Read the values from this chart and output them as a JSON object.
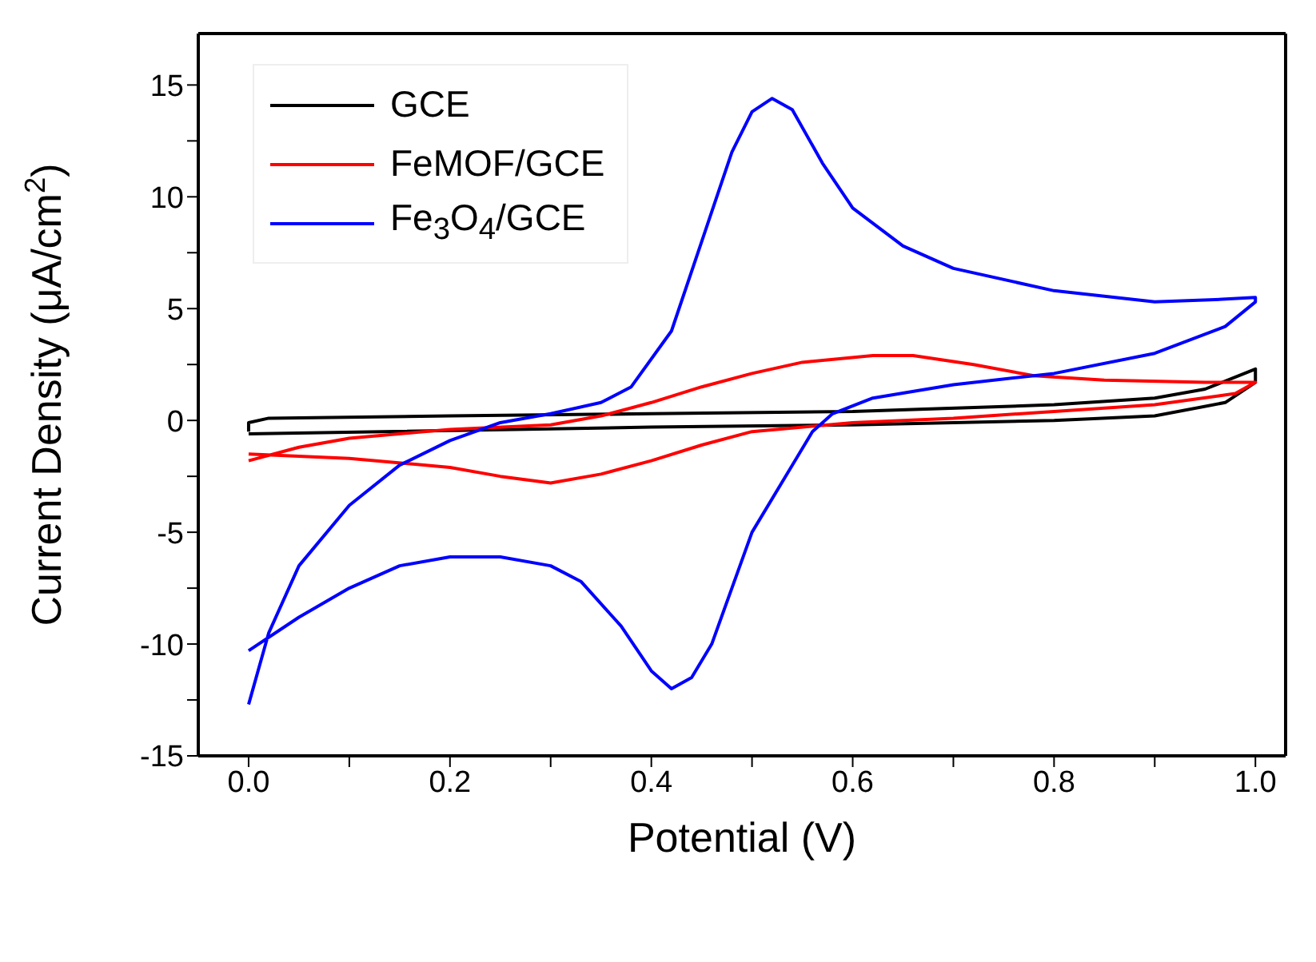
{
  "chart_data": {
    "type": "line",
    "xlabel": "Potential (V)",
    "ylabel": "Current Density (μA/cm$^{2}$)",
    "xlim": [
      -0.05,
      1.03
    ],
    "ylim": [
      -15,
      17.3
    ],
    "xticks": [
      {
        "value": 0,
        "label": "0.0"
      },
      {
        "value": 0.1,
        "label": null
      },
      {
        "value": 0.2,
        "label": "0.2"
      },
      {
        "value": 0.3,
        "label": null
      },
      {
        "value": 0.4,
        "label": "0.4"
      },
      {
        "value": 0.5,
        "label": null
      },
      {
        "value": 0.6,
        "label": "0.6"
      },
      {
        "value": 0.7,
        "label": null
      },
      {
        "value": 0.8,
        "label": "0.8"
      },
      {
        "value": 0.9,
        "label": null
      },
      {
        "value": 1,
        "label": "1.0"
      }
    ],
    "yticks": [
      -15,
      {
        "value": -12.5,
        "label": null
      },
      -10,
      {
        "value": -7.5,
        "label": null
      },
      -5,
      {
        "value": -2.5,
        "label": null
      },
      0,
      {
        "value": 2.5,
        "label": null
      },
      5,
      {
        "value": 7.5,
        "label": null
      },
      10,
      {
        "value": 12.5,
        "label": null
      },
      15
    ],
    "grid": false,
    "legend": "top left",
    "marker": "none",
    "line_style": "solid",
    "series": [
      {
        "name": "GCE",
        "color": "#000000",
        "x": [
          0,
          0,
          0.02,
          0.2,
          0.4,
          0.6,
          0.8,
          0.9,
          0.95,
          1,
          1,
          0.97,
          0.9,
          0.8,
          0.6,
          0.4,
          0
        ],
        "values": [
          -0.5,
          -0.1,
          0.1,
          0.2,
          0.3,
          0.4,
          0.7,
          1,
          1.4,
          2.3,
          1.7,
          0.8,
          0.2,
          0,
          -0.2,
          -0.3,
          -0.6
        ]
      },
      {
        "name": "FeMOF/GCE",
        "color": "#ff0000",
        "x": [
          0,
          0.05,
          0.1,
          0.2,
          0.3,
          0.35,
          0.4,
          0.45,
          0.5,
          0.55,
          0.62,
          0.66,
          0.72,
          0.78,
          0.85,
          0.95,
          1,
          0.98,
          0.9,
          0.8,
          0.7,
          0.6,
          0.5,
          0.45,
          0.4,
          0.35,
          0.3,
          0.25,
          0.2,
          0.1,
          0
        ],
        "values": [
          -1.8,
          -1.2,
          -0.8,
          -0.4,
          -0.2,
          0.2,
          0.8,
          1.5,
          2.1,
          2.6,
          2.9,
          2.9,
          2.5,
          2,
          1.8,
          1.7,
          1.7,
          1.2,
          0.7,
          0.4,
          0.1,
          -0.1,
          -0.5,
          -1.1,
          -1.8,
          -2.4,
          -2.8,
          -2.5,
          -2.1,
          -1.7,
          -1.5
        ]
      },
      {
        "name": "Fe$_{3}$O$_{4}$/GCE",
        "color": "#0000ff",
        "x": [
          0,
          0.02,
          0.05,
          0.1,
          0.15,
          0.2,
          0.25,
          0.3,
          0.35,
          0.38,
          0.42,
          0.45,
          0.48,
          0.5,
          0.52,
          0.54,
          0.57,
          0.6,
          0.65,
          0.7,
          0.8,
          0.9,
          0.96,
          1,
          1,
          0.97,
          0.9,
          0.8,
          0.7,
          0.62,
          0.58,
          0.56,
          0.54,
          0.5,
          0.48,
          0.46,
          0.44,
          0.42,
          0.4,
          0.37,
          0.33,
          0.3,
          0.25,
          0.2,
          0.15,
          0.1,
          0.05,
          0
        ],
        "values": [
          -12.7,
          -9.5,
          -6.5,
          -3.8,
          -2,
          -0.9,
          -0.1,
          0.3,
          0.8,
          1.5,
          4,
          8,
          12,
          13.8,
          14.4,
          13.9,
          11.5,
          9.5,
          7.8,
          6.8,
          5.8,
          5.3,
          5.4,
          5.5,
          5.3,
          4.2,
          3,
          2.1,
          1.6,
          1,
          0.3,
          -0.5,
          -2,
          -5,
          -7.5,
          -10,
          -11.5,
          -12,
          -11.2,
          -9.2,
          -7.2,
          -6.5,
          -6.1,
          -6.1,
          -6.5,
          -7.5,
          -8.8,
          -10.3
        ]
      }
    ]
  }
}
